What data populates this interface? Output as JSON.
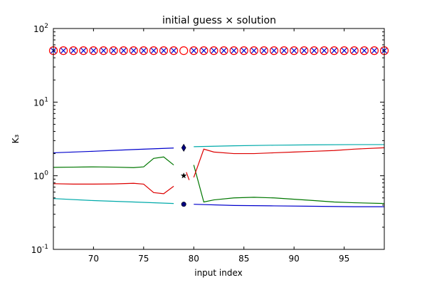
{
  "chart_data": {
    "type": "line",
    "title": "initial guess × solution",
    "xlabel": "input index",
    "ylabel": "K₃",
    "xlim": [
      66,
      99
    ],
    "ylim": [
      0.1,
      100
    ],
    "yscale": "log",
    "grid": false,
    "x_ticks": [
      "70",
      "75",
      "80",
      "85",
      "90",
      "95"
    ],
    "y_ticks": [
      {
        "base": "10",
        "exp": "-1"
      },
      {
        "base": "10",
        "exp": "0"
      },
      {
        "base": "10",
        "exp": "1"
      },
      {
        "base": "10",
        "exp": "2"
      }
    ],
    "series": [
      {
        "color": "#0000cc",
        "segments": [
          [
            [
              66,
              2.05
            ],
            [
              70,
              2.15
            ],
            [
              74,
              2.27
            ],
            [
              78,
              2.38
            ]
          ],
          [
            [
              80,
              0.41
            ],
            [
              84,
              0.395
            ],
            [
              88,
              0.39
            ],
            [
              92,
              0.385
            ],
            [
              96,
              0.38
            ],
            [
              99,
              0.38
            ]
          ]
        ]
      },
      {
        "color": "#00aaaa",
        "segments": [
          [
            [
              66,
              0.49
            ],
            [
              70,
              0.46
            ],
            [
              74,
              0.44
            ],
            [
              78,
              0.42
            ]
          ],
          [
            [
              80,
              2.48
            ],
            [
              84,
              2.55
            ],
            [
              88,
              2.6
            ],
            [
              92,
              2.63
            ],
            [
              96,
              2.65
            ],
            [
              99,
              2.65
            ]
          ]
        ]
      },
      {
        "color": "#007700",
        "segments": [
          [
            [
              66,
              1.3
            ],
            [
              68,
              1.31
            ],
            [
              70,
              1.32
            ],
            [
              72,
              1.31
            ],
            [
              74,
              1.29
            ],
            [
              75,
              1.32
            ],
            [
              76,
              1.72
            ],
            [
              77,
              1.8
            ],
            [
              78,
              1.4
            ]
          ],
          [
            [
              80,
              1.4
            ],
            [
              81,
              0.44
            ],
            [
              82,
              0.47
            ],
            [
              84,
              0.5
            ],
            [
              86,
              0.51
            ],
            [
              88,
              0.5
            ],
            [
              90,
              0.48
            ],
            [
              92,
              0.46
            ],
            [
              94,
              0.44
            ],
            [
              96,
              0.43
            ],
            [
              99,
              0.42
            ]
          ]
        ]
      },
      {
        "color": "#dd0000",
        "segments": [
          [
            [
              66,
              0.78
            ],
            [
              68,
              0.77
            ],
            [
              70,
              0.77
            ],
            [
              72,
              0.775
            ],
            [
              74,
              0.79
            ],
            [
              75,
              0.77
            ],
            [
              76,
              0.59
            ],
            [
              77,
              0.57
            ],
            [
              78,
              0.72
            ]
          ],
          [
            [
              80,
              0.95
            ],
            [
              81,
              2.3
            ],
            [
              82,
              2.1
            ],
            [
              84,
              2.0
            ],
            [
              86,
              2.0
            ],
            [
              88,
              2.05
            ],
            [
              90,
              2.1
            ],
            [
              92,
              2.15
            ],
            [
              94,
              2.2
            ],
            [
              96,
              2.3
            ],
            [
              99,
              2.4
            ]
          ]
        ]
      }
    ],
    "points_79": [
      {
        "shape": "diamond",
        "y": 2.4
      },
      {
        "shape": "star",
        "y": 1.0
      },
      {
        "shape": "circle",
        "y": 0.41
      }
    ],
    "top_markers": {
      "y": 50,
      "x_start": 66,
      "x_end": 99,
      "circle_color": "#ff0000",
      "cross_color": "#0000cc",
      "open_circle_only_at": 79
    },
    "discontinuity_marker": {
      "x": 79.4,
      "y": 1.0,
      "color": "#dd0000"
    }
  }
}
